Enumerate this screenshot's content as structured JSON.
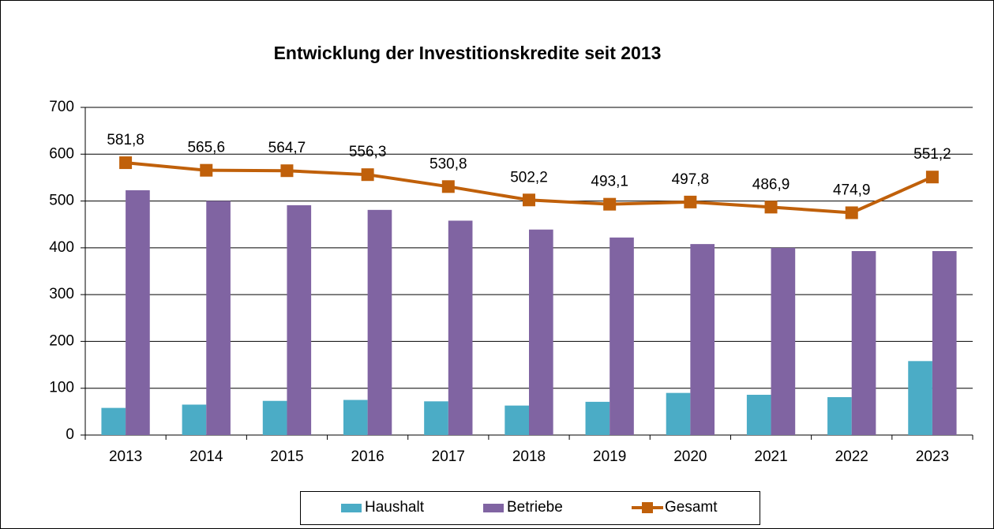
{
  "chart_data": {
    "type": "bar",
    "title": "Entwicklung der Investitionskredite seit 2013",
    "categories": [
      "2013",
      "2014",
      "2015",
      "2016",
      "2017",
      "2018",
      "2019",
      "2020",
      "2021",
      "2022",
      "2023"
    ],
    "series": [
      {
        "name": "Haushalt",
        "color": "#4bacc6",
        "type": "bar",
        "values": [
          58,
          65,
          73,
          75,
          72,
          63,
          71,
          90,
          86,
          81,
          158
        ]
      },
      {
        "name": "Betriebe",
        "color": "#8064a2",
        "type": "bar",
        "values": [
          523,
          500,
          491,
          481,
          458,
          439,
          422,
          408,
          400,
          393,
          393
        ]
      },
      {
        "name": "Gesamt",
        "color": "#c0600a",
        "type": "line",
        "values": [
          581.8,
          565.6,
          564.7,
          556.3,
          530.8,
          502.2,
          493.1,
          497.8,
          486.9,
          474.9,
          551.2
        ],
        "value_labels": [
          "581,8",
          "565,6",
          "564,7",
          "556,3",
          "530,8",
          "502,2",
          "493,1",
          "497,8",
          "486,9",
          "474,9",
          "551,2"
        ]
      }
    ],
    "ylim": [
      0,
      700
    ],
    "yticks": [
      0,
      100,
      200,
      300,
      400,
      500,
      600,
      700
    ],
    "grid": true,
    "legend": "bottom"
  }
}
